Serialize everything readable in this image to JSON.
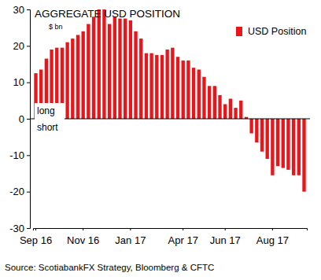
{
  "chart_data": {
    "type": "bar",
    "title": "AGGREGATE USD POSITION",
    "ylabel": "$ bn",
    "source": "Source: ScotiabankFX Strategy, Bloomberg & CFTC",
    "annotations": [
      "long",
      "short"
    ],
    "categories": [
      "Sep 16",
      null,
      null,
      null,
      null,
      null,
      null,
      null,
      null,
      "Nov 16",
      null,
      null,
      null,
      null,
      null,
      null,
      null,
      null,
      "Jan 17",
      null,
      null,
      null,
      null,
      null,
      null,
      null,
      null,
      null,
      "Apr 17",
      null,
      null,
      null,
      null,
      null,
      null,
      null,
      "Jun 17",
      null,
      null,
      null,
      null,
      null,
      null,
      null,
      null,
      "Aug 17",
      null,
      null,
      null,
      null,
      null,
      null
    ],
    "series": [
      {
        "name": "USD Position",
        "color": "#e8161b",
        "values": [
          12.5,
          13.5,
          16.5,
          19,
          19.5,
          19.5,
          21,
          22,
          23,
          24,
          26,
          28,
          30,
          30,
          26,
          28,
          27.5,
          27.5,
          27,
          24,
          22,
          18,
          18,
          17.5,
          17.5,
          19,
          19.5,
          17,
          16,
          16,
          14,
          13.5,
          11.5,
          9,
          9,
          6.5,
          4,
          5.5,
          3,
          5,
          0.5,
          -4,
          -6.5,
          -9,
          -11,
          -15.5,
          -13,
          -13.5,
          -14,
          -15.5,
          -15.5,
          -20
        ]
      }
    ],
    "ylim": [
      -30,
      30
    ],
    "yticks": [
      -30,
      -20,
      -10,
      0,
      10,
      20,
      30
    ],
    "grid": false,
    "legend": "upper right"
  }
}
